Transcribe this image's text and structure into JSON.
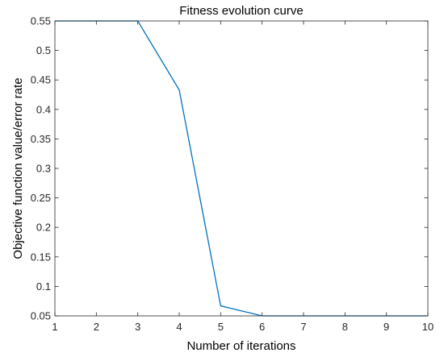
{
  "chart_data": {
    "type": "line",
    "title": "Fitness evolution curve",
    "xlabel": "Number of iterations",
    "ylabel": "Objective function value/error rate",
    "xlim": [
      1,
      10
    ],
    "ylim": [
      0.05,
      0.55
    ],
    "x_ticks": [
      1,
      2,
      3,
      4,
      5,
      6,
      7,
      8,
      9,
      10
    ],
    "y_ticks": [
      0.05,
      0.1,
      0.15,
      0.2,
      0.25,
      0.3,
      0.35,
      0.4,
      0.45,
      0.5,
      0.55
    ],
    "y_tick_labels": [
      "0.05",
      "0.1",
      "0.15",
      "0.2",
      "0.25",
      "0.3",
      "0.35",
      "0.4",
      "0.45",
      "0.5",
      "0.55"
    ],
    "grid": false,
    "series": [
      {
        "color": "#0072BD",
        "x": [
          1,
          2,
          3,
          4,
          5,
          6,
          7,
          8,
          9,
          10
        ],
        "y": [
          0.55,
          0.55,
          0.55,
          0.433,
          0.067,
          0.05,
          0.05,
          0.05,
          0.05,
          0.05
        ]
      }
    ]
  }
}
